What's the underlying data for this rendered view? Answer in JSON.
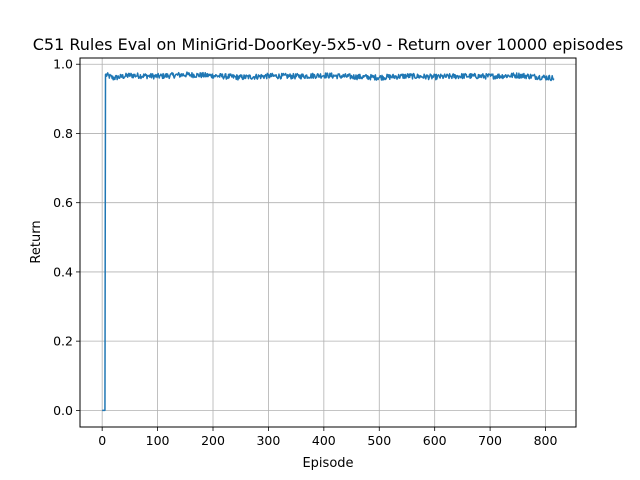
{
  "chart_data": {
    "type": "line",
    "title": "C51 Rules Eval on MiniGrid-DoorKey-5x5-v0 - Return over 10000 episodes",
    "xlabel": "Episode",
    "ylabel": "Return",
    "xlim": [
      -40,
      855
    ],
    "ylim": [
      -0.048,
      1.018
    ],
    "xticks": [
      0,
      100,
      200,
      300,
      400,
      500,
      600,
      700,
      800
    ],
    "yticks": [
      0.0,
      0.2,
      0.4,
      0.6,
      0.8,
      1.0
    ],
    "xtick_labels": [
      "0",
      "100",
      "200",
      "300",
      "400",
      "500",
      "600",
      "700",
      "800"
    ],
    "ytick_labels": [
      "0.0",
      "0.2",
      "0.4",
      "0.6",
      "0.8",
      "1.0"
    ],
    "grid": true,
    "legend": "none",
    "series": [
      {
        "color": "#1f77b4",
        "x_range": [
          0,
          815
        ],
        "points": [
          [
            0,
            0.0
          ],
          [
            5,
            0.0
          ],
          [
            6,
            0.97
          ],
          [
            20,
            0.96
          ],
          [
            50,
            0.968
          ],
          [
            100,
            0.965
          ],
          [
            150,
            0.97
          ],
          [
            200,
            0.967
          ],
          [
            250,
            0.962
          ],
          [
            300,
            0.966
          ],
          [
            350,
            0.965
          ],
          [
            400,
            0.968
          ],
          [
            450,
            0.964
          ],
          [
            500,
            0.962
          ],
          [
            550,
            0.966
          ],
          [
            600,
            0.963
          ],
          [
            650,
            0.966
          ],
          [
            700,
            0.965
          ],
          [
            750,
            0.968
          ],
          [
            800,
            0.962
          ],
          [
            815,
            0.96
          ]
        ],
        "noise_amplitude": 0.008
      }
    ]
  },
  "colors": {
    "line": "#1f77b4",
    "grid": "#b0b0b0",
    "axes": "#000000",
    "background": "#ffffff"
  }
}
